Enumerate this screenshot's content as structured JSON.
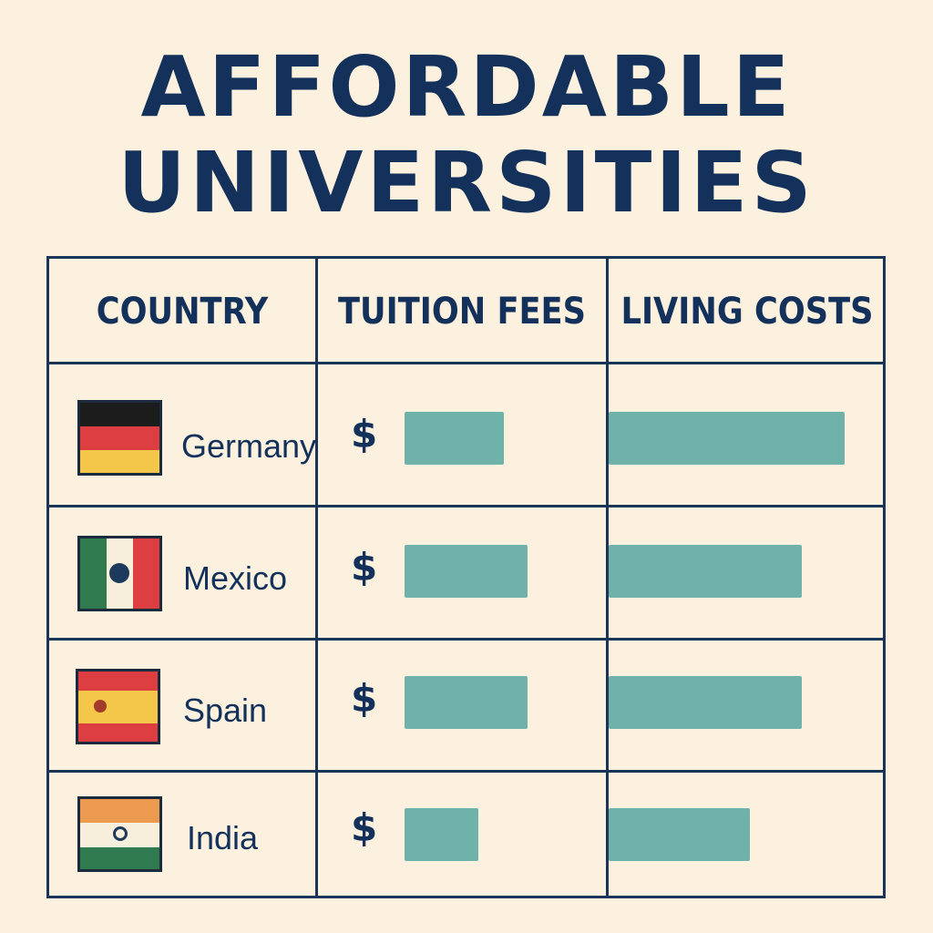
{
  "title": {
    "line1": "AFFORDABLE",
    "line2": "UNIVERSITIES"
  },
  "table": {
    "headers": [
      "COUNTRY",
      "TUITION FEES",
      "LIVING COSTS"
    ],
    "currency_symbol": "$"
  },
  "colors": {
    "background": "#fbf1de",
    "text": "#13315a",
    "bar": "#6fb2aa",
    "grid": "#1b3558"
  },
  "chart_data": {
    "type": "table",
    "title": "AFFORDABLE UNIVERSITIES",
    "columns": [
      "COUNTRY",
      "TUITION FEES",
      "LIVING COSTS"
    ],
    "categories": [
      "Germany",
      "Mexico",
      "Spain",
      "India"
    ],
    "series": [
      {
        "name": "TUITION FEES",
        "values": [
          0.5,
          0.62,
          0.62,
          0.37
        ]
      },
      {
        "name": "LIVING COSTS",
        "values": [
          0.87,
          0.71,
          0.71,
          0.52
        ]
      }
    ],
    "flags": [
      "germany-flag-icon",
      "mexico-flag-icon",
      "spain-flag-icon",
      "india-flag-icon"
    ]
  }
}
